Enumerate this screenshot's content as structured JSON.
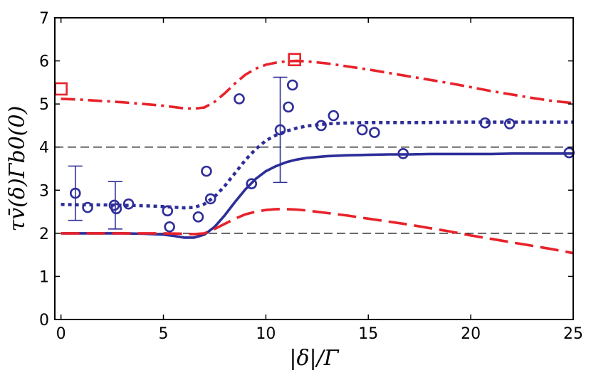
{
  "chart_data": {
    "type": "line",
    "title": "",
    "xlabel": "|δ|/Γ",
    "ylabel": "τv̄(δ)Γb0(0)",
    "xlim": [
      -0.3,
      25
    ],
    "ylim": [
      0,
      7
    ],
    "x_ticks": [
      0,
      5,
      10,
      15,
      20,
      25
    ],
    "y_ticks": [
      0,
      1,
      2,
      3,
      4,
      5,
      6,
      7
    ],
    "grid": false,
    "legend": "none",
    "reference_lines": [
      {
        "y": 2,
        "style": "dashed",
        "color": "#000000"
      },
      {
        "y": 4,
        "style": "dashed",
        "color": "#000000"
      }
    ],
    "series": [
      {
        "style": "dash-dot",
        "color": "#e8222a",
        "x": [
          0,
          1,
          2,
          3,
          4,
          5,
          6,
          6.5,
          7,
          7.5,
          8,
          8.5,
          9,
          9.5,
          10,
          10.5,
          11,
          11.5,
          12,
          13,
          14,
          15,
          16,
          17,
          18,
          19,
          20,
          21,
          22,
          23,
          24,
          25
        ],
        "y": [
          5.12,
          5.1,
          5.07,
          5.04,
          5.0,
          4.96,
          4.9,
          4.89,
          4.92,
          5.05,
          5.25,
          5.48,
          5.68,
          5.82,
          5.91,
          5.96,
          5.99,
          6.0,
          5.99,
          5.94,
          5.87,
          5.8,
          5.72,
          5.64,
          5.56,
          5.48,
          5.39,
          5.3,
          5.22,
          5.14,
          5.07,
          5.02
        ]
      },
      {
        "style": "dotted",
        "color": "#2e2e99",
        "x": [
          0,
          1,
          2,
          3,
          4,
          5,
          6,
          6.5,
          7,
          7.5,
          8,
          8.5,
          9,
          9.5,
          10,
          10.5,
          11,
          11.5,
          12,
          13,
          14,
          15,
          16,
          17,
          18,
          19,
          20,
          21,
          22,
          23,
          24,
          25
        ],
        "y": [
          2.67,
          2.66,
          2.66,
          2.65,
          2.64,
          2.62,
          2.59,
          2.6,
          2.68,
          2.85,
          3.1,
          3.4,
          3.7,
          3.95,
          4.15,
          4.28,
          4.37,
          4.44,
          4.49,
          4.54,
          4.56,
          4.57,
          4.57,
          4.57,
          4.57,
          4.58,
          4.58,
          4.58,
          4.58,
          4.58,
          4.58,
          4.58
        ]
      },
      {
        "style": "solid",
        "color": "#2e2e99",
        "x": [
          0,
          1,
          2,
          3,
          4,
          5,
          5.5,
          6,
          6.5,
          7,
          7.5,
          8,
          8.5,
          9,
          9.5,
          10,
          10.5,
          11,
          11.5,
          12,
          13,
          14,
          15,
          16,
          17,
          18,
          19,
          20,
          21,
          22,
          23,
          24,
          25
        ],
        "y": [
          2.0,
          2.0,
          2.0,
          2.0,
          1.99,
          1.97,
          1.94,
          1.9,
          1.9,
          1.97,
          2.15,
          2.42,
          2.73,
          3.02,
          3.26,
          3.44,
          3.56,
          3.65,
          3.71,
          3.75,
          3.79,
          3.81,
          3.82,
          3.83,
          3.83,
          3.84,
          3.84,
          3.84,
          3.84,
          3.85,
          3.85,
          3.85,
          3.85
        ]
      },
      {
        "style": "dashed",
        "color": "#e8222a",
        "x": [
          0,
          1,
          2,
          3,
          4,
          5,
          6,
          6.5,
          7,
          7.5,
          8,
          8.5,
          9,
          9.5,
          10,
          10.5,
          11,
          11.5,
          12,
          13,
          14,
          15,
          16,
          17,
          18,
          19,
          20,
          21,
          22,
          23,
          24,
          25
        ],
        "y": [
          2.0,
          2.0,
          2.0,
          2.0,
          2.0,
          2.0,
          1.99,
          1.98,
          2.0,
          2.1,
          2.22,
          2.34,
          2.44,
          2.5,
          2.54,
          2.56,
          2.56,
          2.55,
          2.53,
          2.47,
          2.41,
          2.34,
          2.27,
          2.2,
          2.12,
          2.04,
          1.95,
          1.87,
          1.79,
          1.71,
          1.63,
          1.54
        ]
      },
      {
        "style": "markers",
        "marker": "circle",
        "color": "#2e2e99",
        "x": [
          0.7,
          1.3,
          2.6,
          2.7,
          3.3,
          5.2,
          5.3,
          6.7,
          7.1,
          7.3,
          8.7,
          9.3,
          10.7,
          11.1,
          11.3,
          12.7,
          13.3,
          14.7,
          15.3,
          16.7,
          20.7,
          21.9,
          24.8
        ],
        "y": [
          2.93,
          2.6,
          2.65,
          2.57,
          2.68,
          2.52,
          2.15,
          2.38,
          3.44,
          2.8,
          5.12,
          3.15,
          4.4,
          4.93,
          5.44,
          4.5,
          4.73,
          4.4,
          4.34,
          3.85,
          4.56,
          4.54,
          3.87
        ]
      },
      {
        "style": "markers",
        "marker": "square",
        "color": "#e8222a",
        "x": [
          0.0,
          11.4
        ],
        "y": [
          5.35,
          6.03
        ]
      }
    ],
    "error_bars": [
      {
        "x": 0.7,
        "y_low": 2.3,
        "y_high": 3.56,
        "color": "#2e2e99"
      },
      {
        "x": 2.65,
        "y_low": 2.1,
        "y_high": 3.2,
        "color": "#2e2e99"
      },
      {
        "x": 10.7,
        "y_low": 3.18,
        "y_high": 5.62,
        "color": "#2e2e99"
      }
    ]
  }
}
